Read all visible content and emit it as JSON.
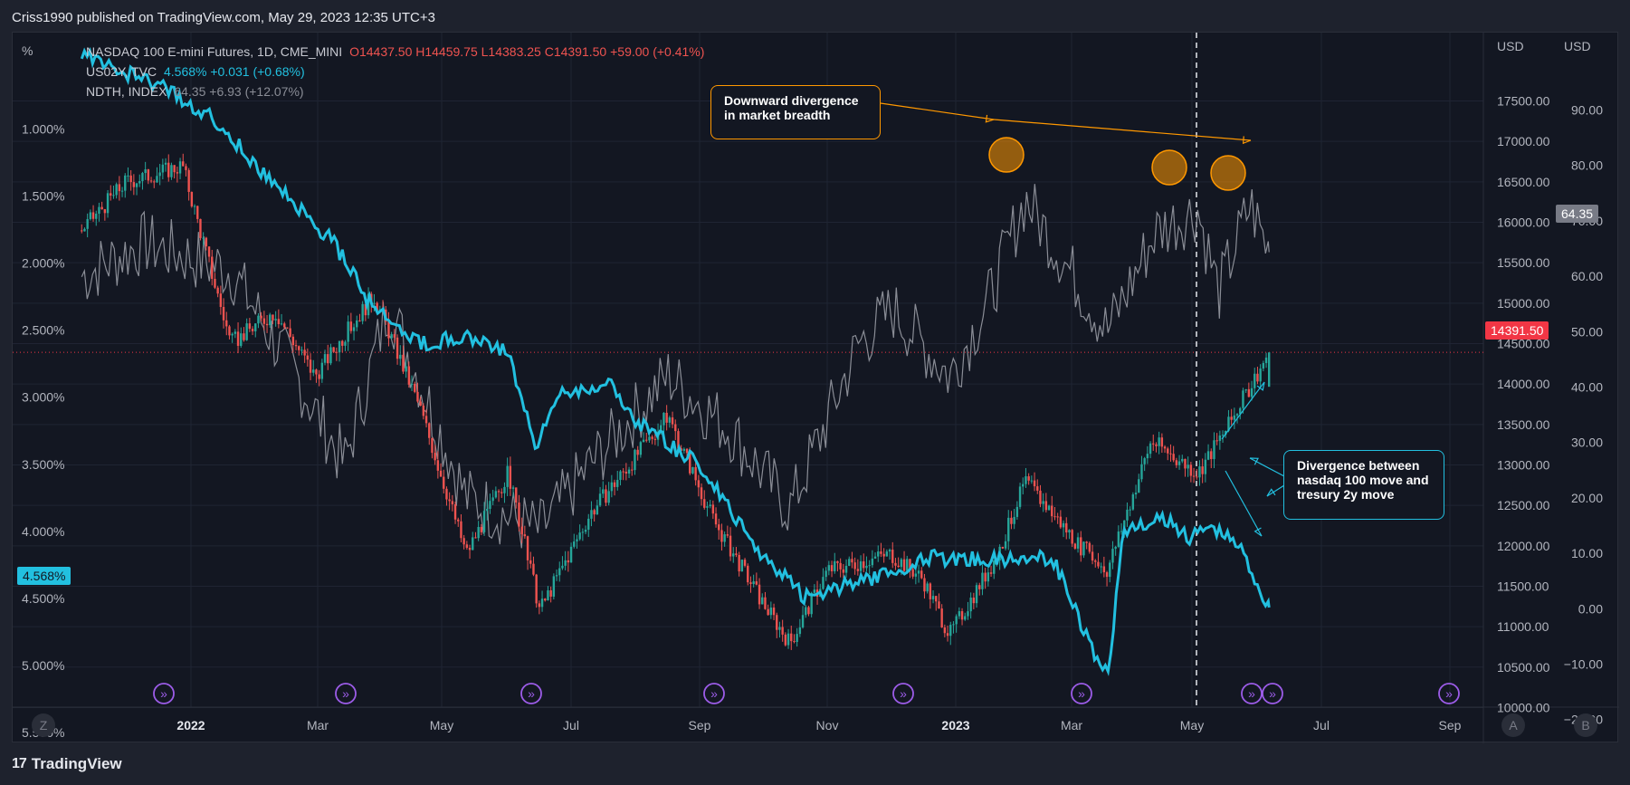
{
  "header": {
    "title": "Criss1990 published on TradingView.com, May 29, 2023 12:35 UTC+3"
  },
  "legend": {
    "nasdaq": {
      "name": "NASDAQ 100 E-mini Futures, 1D, CME_MINI",
      "ohlc": "O14437.50  H14459.75  L14383.25  C14391.50  +59.00 (+0.41%)"
    },
    "us02y": {
      "name": "US02Y, TVC",
      "value": "4.568%  +0.031 (+0.68%)"
    },
    "ndth": {
      "name": "NDTH, INDEX",
      "value": "64.35  +6.93 (+12.07%)"
    }
  },
  "colors": {
    "background": "#131722",
    "candle_up": "#26a69a",
    "candle_down": "#ef5350",
    "yield_line": "#22c0e0",
    "breadth_line": "#8a8d96",
    "annotation_orange": "#ff9800",
    "event_icon": "#9c5ce8"
  },
  "axes": {
    "left_unit": "%",
    "right_unit_price": "USD",
    "right_unit_breadth": "USD",
    "left_ticks": [
      "1.000%",
      "1.500%",
      "2.000%",
      "2.500%",
      "3.000%",
      "3.500%",
      "4.000%",
      "4.500%",
      "5.000%",
      "5.500%"
    ],
    "price_ticks": [
      "17500.00",
      "17000.00",
      "16500.00",
      "16000.00",
      "15500.00",
      "15000.00",
      "14500.00",
      "14000.00",
      "13500.00",
      "13000.00",
      "12500.00",
      "12000.00",
      "11500.00",
      "11000.00",
      "10500.00",
      "10000.00"
    ],
    "breadth_ticks": [
      "90.00",
      "80.00",
      "70.00",
      "60.00",
      "50.00",
      "40.00",
      "30.00",
      "20.00",
      "10.00",
      "0.00",
      "−10.00",
      "−20.00"
    ],
    "time_ticks": [
      "2022",
      "Mar",
      "May",
      "Jul",
      "Sep",
      "Nov",
      "2023",
      "Mar",
      "May",
      "Jul",
      "Sep"
    ],
    "bottom_left_button": "Z",
    "bottom_right_buttons": [
      "A",
      "B"
    ]
  },
  "price_tags": {
    "yield_last": "4.568%",
    "price_last": "14391.50",
    "breadth_last": "64.35"
  },
  "annotations": {
    "breadth_divergence": "Downward divergence in market breadth",
    "yield_divergence": "Divergence between nasdaq 100 move and tresury 2y move"
  },
  "footer": {
    "brand": "TradingView"
  },
  "chart_data": {
    "type": "line",
    "x_label_range": [
      "2021-11",
      "2023-09"
    ],
    "series": [
      {
        "name": "NASDAQ 100 E-mini Futures",
        "axis": "right-price",
        "style": "candlestick",
        "x": [
          "2021-11-10",
          "2021-12-01",
          "2021-12-28",
          "2022-01-20",
          "2022-02-10",
          "2022-03-01",
          "2022-03-29",
          "2022-04-20",
          "2022-05-12",
          "2022-06-01",
          "2022-06-16",
          "2022-07-10",
          "2022-08-16",
          "2022-09-07",
          "2022-09-30",
          "2022-10-13",
          "2022-10-31",
          "2022-11-30",
          "2022-12-15",
          "2022-12-28",
          "2023-01-20",
          "2023-02-02",
          "2023-02-28",
          "2023-03-13",
          "2023-04-03",
          "2023-04-25",
          "2023-05-10",
          "2023-05-29"
        ],
        "values": [
          15900,
          16500,
          16700,
          14500,
          14900,
          14100,
          15100,
          13700,
          11900,
          12900,
          11200,
          12400,
          13600,
          12300,
          11300,
          10800,
          11700,
          11900,
          11600,
          10900,
          11900,
          12800,
          12000,
          11700,
          13300,
          12900,
          13500,
          14391.5
        ]
      },
      {
        "name": "US02Y",
        "axis": "left",
        "x": [
          "2021-11-10",
          "2021-12-20",
          "2022-01-10",
          "2022-02-15",
          "2022-03-10",
          "2022-03-29",
          "2022-04-20",
          "2022-05-10",
          "2022-06-01",
          "2022-06-14",
          "2022-06-25",
          "2022-07-20",
          "2022-08-02",
          "2022-08-31",
          "2022-09-26",
          "2022-10-20",
          "2022-11-10",
          "2022-12-01",
          "2022-12-20",
          "2023-01-20",
          "2023-02-15",
          "2023-03-08",
          "2023-03-14",
          "2023-03-20",
          "2023-04-10",
          "2023-04-20",
          "2023-05-01",
          "2023-05-15",
          "2023-05-29"
        ],
        "values": [
          0.45,
          0.7,
          0.9,
          1.5,
          1.85,
          2.35,
          2.6,
          2.55,
          2.65,
          3.4,
          2.95,
          2.9,
          3.2,
          3.5,
          4.1,
          4.5,
          4.4,
          4.3,
          4.2,
          4.2,
          4.2,
          4.95,
          5.05,
          4.0,
          3.9,
          4.05,
          3.95,
          4.1,
          4.568
        ]
      },
      {
        "name": "NDTH",
        "axis": "right-breadth",
        "x": [
          "2021-11-10",
          "2021-12-10",
          "2022-01-20",
          "2022-02-20",
          "2022-03-15",
          "2022-04-05",
          "2022-05-12",
          "2022-06-16",
          "2022-07-10",
          "2022-08-16",
          "2022-09-15",
          "2022-10-13",
          "2022-11-15",
          "2022-12-01",
          "2022-12-28",
          "2023-01-15",
          "2023-02-02",
          "2023-02-20",
          "2023-03-13",
          "2023-04-05",
          "2023-04-25",
          "2023-05-05",
          "2023-05-20",
          "2023-05-29"
        ],
        "values": [
          60,
          66,
          61,
          42,
          26,
          55,
          20,
          14,
          26,
          42,
          32,
          18,
          48,
          54,
          42,
          55,
          74,
          63,
          50,
          68,
          72,
          57,
          73,
          64.35
        ]
      }
    ],
    "ylim_left": [
      0.5,
      5.5
    ],
    "ylim_price": [
      10000,
      17500
    ],
    "ylim_breadth": [
      -20,
      90
    ],
    "grid": true
  }
}
